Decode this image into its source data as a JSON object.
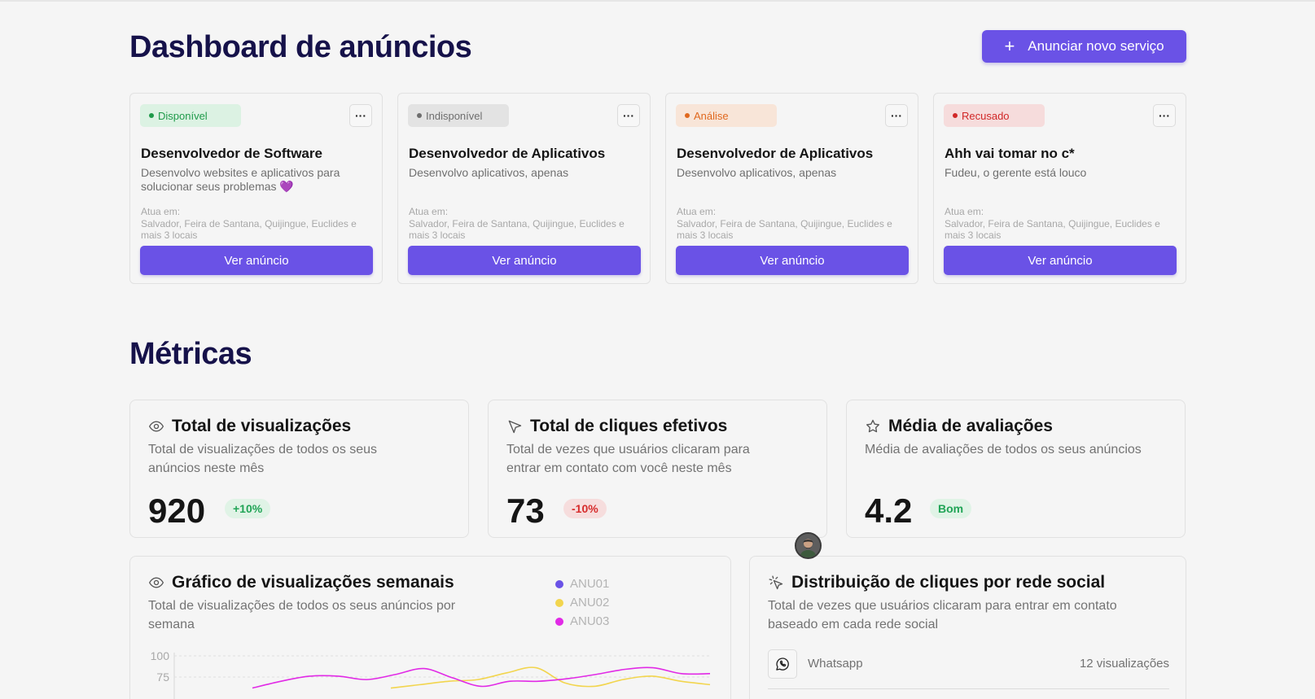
{
  "header": {
    "title": "Dashboard de anúncios",
    "new_button": "Anunciar novo serviço"
  },
  "cards": [
    {
      "status": "Disponível",
      "status_color": "#1f9a4a",
      "title": "Desenvolvedor de Software",
      "description": "Desenvolvo websites e aplicativos para solucionar seus problemas 💜",
      "atua_label": "Atua em:",
      "locations": "Salvador, Feira de Santana, Quijingue, Euclides e mais 3 locais",
      "button": "Ver anúncio",
      "more": "···"
    },
    {
      "status": "Indisponível",
      "status_color": "#6e6e6e",
      "title": "Desenvolvedor de Aplicativos",
      "description": "Desenvolvo aplicativos, apenas",
      "atua_label": "Atua em:",
      "locations": "Salvador, Feira de Santana, Quijingue, Euclides e mais 3 locais",
      "button": "Ver anúncio",
      "more": "···"
    },
    {
      "status": "Análise",
      "status_color": "#e0681e",
      "title": "Desenvolvedor de Aplicativos",
      "description": "Desenvolvo aplicativos, apenas",
      "atua_label": "Atua em:",
      "locations": "Salvador, Feira de Santana, Quijingue, Euclides e mais 3 locais",
      "button": "Ver anúncio",
      "more": "···"
    },
    {
      "status": "Recusado",
      "status_color": "#d12727",
      "title": "Ahh vai tomar no c*",
      "description": "Fudeu, o gerente está louco",
      "atua_label": "Atua em:",
      "locations": "Salvador, Feira de Santana, Quijingue, Euclides e mais 3 locais",
      "button": "Ver anúncio",
      "more": "···"
    }
  ],
  "metrics": {
    "title": "Métricas",
    "items": [
      {
        "icon": "eye-icon",
        "title": "Total de visualizações",
        "description": "Total de visualizações de todos os seus anúncios neste mês",
        "value": "920",
        "badge": "+10%"
      },
      {
        "icon": "cursor-icon",
        "title": "Total de cliques efetivos",
        "description": "Total de vezes que usuários clicaram para entrar em contato com você neste mês",
        "value": "73",
        "badge": "-10%"
      },
      {
        "icon": "star-icon",
        "title": "Média de avaliações",
        "description": "Média de avaliações de todos os seus anúncios",
        "value": "4.2",
        "badge": "Bom"
      }
    ]
  },
  "weekly_chart": {
    "title": "Gráfico de visualizações semanais",
    "description": "Total de visualizações de todos os seus anúncios por semana"
  },
  "chart_data": {
    "type": "line",
    "yticks": [
      "100",
      "75"
    ],
    "ylim": [
      0,
      100
    ],
    "grid": true,
    "legend": "top-right",
    "series": [
      {
        "name": "ANU01",
        "color": "#6a52e6",
        "values": []
      },
      {
        "name": "ANU02",
        "color": "#f2d54e",
        "values": [
          62,
          66,
          70,
          72,
          80,
          86,
          68,
          64,
          72,
          76,
          70,
          66
        ]
      },
      {
        "name": "ANU03",
        "color": "#e12ae6",
        "values": [
          62,
          70,
          76,
          76,
          72,
          78,
          85,
          74,
          64,
          70,
          70,
          73,
          78,
          84,
          86,
          79,
          79
        ]
      }
    ]
  },
  "social": {
    "title": "Distribuição de cliques por rede social",
    "description": "Total de vezes que usuários clicaram para entrar em contato baseado em cada rede social",
    "rows": [
      {
        "icon": "whatsapp-icon",
        "name": "Whatsapp",
        "count": "12 visualizações"
      }
    ]
  }
}
